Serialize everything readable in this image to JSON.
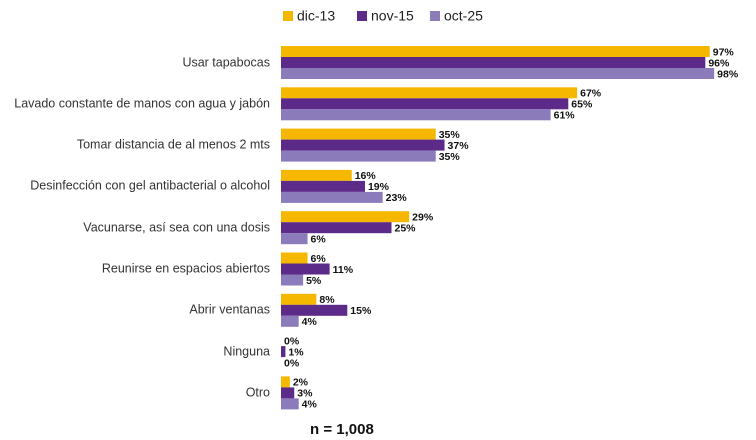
{
  "chart_data": {
    "type": "bar",
    "orientation": "horizontal",
    "categories": [
      "Usar tapabocas",
      "Lavado constante de manos con agua y jabón",
      "Tomar distancia de al menos 2 mts",
      "Desinfección con gel antibacterial o alcohol",
      "Vacunarse, así sea con una dosis",
      "Reunirse en espacios abiertos",
      "Abrir ventanas",
      "Ninguna",
      "Otro"
    ],
    "series": [
      {
        "name": "dic-13",
        "color": "#f5b700",
        "values": [
          97,
          67,
          35,
          16,
          29,
          6,
          8,
          0,
          2
        ],
        "value_labels": [
          "97%",
          "67%",
          "35%",
          "16%",
          "29%",
          "6%",
          "8%",
          "0%",
          "2%"
        ]
      },
      {
        "name": "nov-15",
        "color": "#5c2a88",
        "values": [
          96,
          65,
          37,
          19,
          25,
          11,
          15,
          1,
          3
        ],
        "value_labels": [
          "96%",
          "65%",
          "37%",
          "19%",
          "25%",
          "11%",
          "15%",
          "1%",
          "3%"
        ]
      },
      {
        "name": "oct-25",
        "color": "#8b7bbb",
        "values": [
          98,
          61,
          35,
          23,
          6,
          5,
          4,
          0,
          4
        ],
        "value_labels": [
          "98%",
          "61%",
          "35%",
          "23%",
          "6%",
          "5%",
          "4%",
          "0%",
          "4%"
        ]
      }
    ],
    "xlim": [
      0,
      100
    ],
    "legend": "top",
    "annotation": "n = 1,008"
  }
}
